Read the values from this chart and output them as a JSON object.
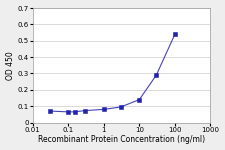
{
  "x": [
    0.03,
    0.1,
    0.15,
    0.3,
    1.0,
    3.0,
    10.0,
    30.0,
    100.0
  ],
  "y": [
    0.07,
    0.065,
    0.065,
    0.073,
    0.08,
    0.095,
    0.14,
    0.29,
    0.54
  ],
  "line_color": "#4444bb",
  "marker_color": "#2222aa",
  "xlabel": "Recombinant Protein Concentration (ng/ml)",
  "ylabel": "OD 450",
  "xlim": [
    0.01,
    1000
  ],
  "ylim": [
    0,
    0.7
  ],
  "yticks": [
    0,
    0.1,
    0.2,
    0.3,
    0.4,
    0.5,
    0.6,
    0.7
  ],
  "xtick_labels": [
    "0.01",
    "0.1",
    "1",
    "10",
    "100",
    "1000"
  ],
  "xtick_vals": [
    0.01,
    0.1,
    1,
    10,
    100,
    1000
  ],
  "bg_color": "#eeeeee",
  "plot_bg": "#ffffff",
  "font_size": 5.5,
  "label_font_size": 5.5,
  "tick_font_size": 5.0
}
